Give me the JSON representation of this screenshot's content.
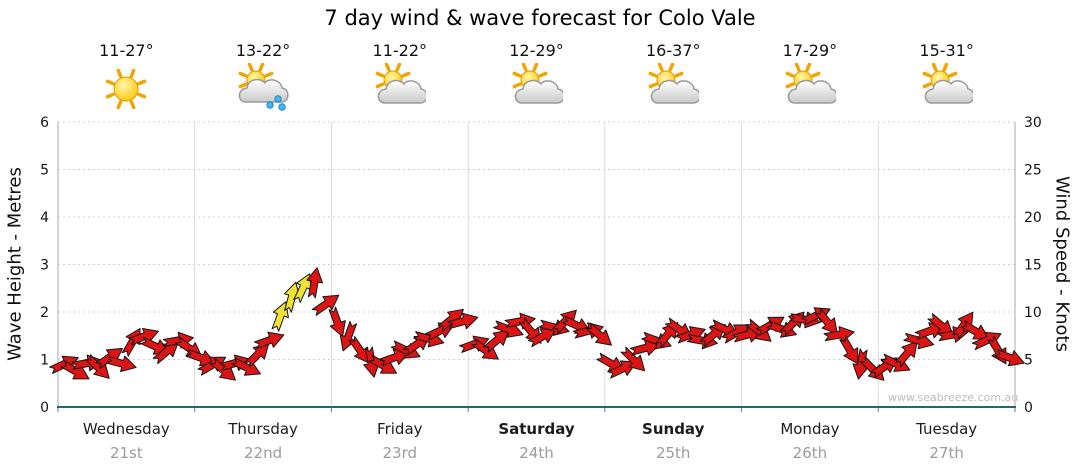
{
  "title": "7 day wind & wave forecast for Colo Vale",
  "watermark": "www.seabreeze.com.au",
  "axes": {
    "left_label": "Wave Height - Metres",
    "right_label": "Wind Speed - Knots",
    "left_ticks": [
      0,
      1,
      2,
      3,
      4,
      5,
      6
    ],
    "right_ticks": [
      0,
      5,
      10,
      15,
      20,
      25,
      30
    ]
  },
  "days": [
    {
      "name": "Wednesday",
      "date": "21st",
      "temp": "11-27°",
      "icon": "sunny",
      "bold": false
    },
    {
      "name": "Thursday",
      "date": "22nd",
      "temp": "13-22°",
      "icon": "partly-cloudy-rain",
      "bold": false
    },
    {
      "name": "Friday",
      "date": "23rd",
      "temp": "11-22°",
      "icon": "partly-cloudy",
      "bold": false
    },
    {
      "name": "Saturday",
      "date": "24th",
      "temp": "12-29°",
      "icon": "partly-cloudy",
      "bold": true
    },
    {
      "name": "Sunday",
      "date": "25th",
      "temp": "16-37°",
      "icon": "partly-cloudy",
      "bold": true
    },
    {
      "name": "Monday",
      "date": "26th",
      "temp": "17-29°",
      "icon": "partly-cloudy",
      "bold": false
    },
    {
      "name": "Tuesday",
      "date": "27th",
      "temp": "15-31°",
      "icon": "partly-cloudy",
      "bold": false
    }
  ],
  "chart_data": {
    "type": "scatter",
    "title": "7 day wind & wave forecast for Colo Vale",
    "x_categories": [
      "Wednesday 21st",
      "Thursday 22nd",
      "Friday 23rd",
      "Saturday 24th",
      "Sunday 25th",
      "Monday 26th",
      "Tuesday 27th"
    ],
    "y_left": {
      "label": "Wave Height - Metres",
      "range": [
        0,
        6
      ],
      "ticks": [
        0,
        1,
        2,
        3,
        4,
        5,
        6
      ]
    },
    "y_right": {
      "label": "Wind Speed - Knots",
      "range": [
        0,
        30
      ],
      "ticks": [
        0,
        5,
        10,
        15,
        20,
        25,
        30
      ]
    },
    "grid": true,
    "legend": "none",
    "series_name": "Wind speed & direction arrows",
    "unit": "knots",
    "points_format": "[wind_speed_knots, arrow_rotation_deg, color r=red y=yellow-strong]",
    "arrow_colors": {
      "normal": "#dd1414",
      "strong": "#f2e233"
    },
    "days": [
      {
        "day": "Wednesday",
        "points": [
          [
            4.5,
            -25,
            "r"
          ],
          [
            3.8,
            30,
            "r"
          ],
          [
            4.6,
            -10,
            "r"
          ],
          [
            4.2,
            45,
            "r"
          ],
          [
            5.2,
            -35,
            "r"
          ],
          [
            4.6,
            15,
            "r"
          ],
          [
            6.8,
            -60,
            "r"
          ],
          [
            7.4,
            -20,
            "r"
          ],
          [
            6.4,
            25,
            "r"
          ],
          [
            5.8,
            -40,
            "r"
          ],
          [
            7.0,
            -10,
            "r"
          ],
          [
            6.2,
            35,
            "r"
          ]
        ]
      },
      {
        "day": "Thursday",
        "points": [
          [
            5.2,
            20,
            "r"
          ],
          [
            4.4,
            -30,
            "r"
          ],
          [
            3.9,
            40,
            "r"
          ],
          [
            4.6,
            -15,
            "r"
          ],
          [
            4.2,
            25,
            "r"
          ],
          [
            5.5,
            -45,
            "r"
          ],
          [
            7.0,
            -20,
            "r"
          ],
          [
            9.5,
            -70,
            "y"
          ],
          [
            11.5,
            -75,
            "y"
          ],
          [
            12.5,
            -65,
            "y"
          ],
          [
            13.0,
            -80,
            "r"
          ],
          [
            10.8,
            -35,
            "r"
          ]
        ]
      },
      {
        "day": "Friday",
        "points": [
          [
            9.0,
            70,
            "r"
          ],
          [
            7.5,
            110,
            "r"
          ],
          [
            6.0,
            55,
            "r"
          ],
          [
            4.8,
            80,
            "r"
          ],
          [
            4.4,
            30,
            "r"
          ],
          [
            5.2,
            -20,
            "r"
          ],
          [
            6.0,
            25,
            "r"
          ],
          [
            6.6,
            -35,
            "r"
          ],
          [
            7.2,
            15,
            "r"
          ],
          [
            8.0,
            -25,
            "r"
          ],
          [
            9.2,
            -40,
            "r"
          ],
          [
            9.0,
            -15,
            "r"
          ]
        ]
      },
      {
        "day": "Saturday",
        "points": [
          [
            6.6,
            -20,
            "r"
          ],
          [
            6.0,
            35,
            "r"
          ],
          [
            7.0,
            -40,
            "r"
          ],
          [
            8.2,
            20,
            "r"
          ],
          [
            9.0,
            -10,
            "r"
          ],
          [
            8.0,
            50,
            "r"
          ],
          [
            7.4,
            -30,
            "r"
          ],
          [
            8.4,
            15,
            "r"
          ],
          [
            9.0,
            -45,
            "r"
          ],
          [
            8.6,
            25,
            "r"
          ],
          [
            8.0,
            -15,
            "r"
          ],
          [
            7.6,
            40,
            "r"
          ]
        ]
      },
      {
        "day": "Sunday",
        "points": [
          [
            4.6,
            30,
            "r"
          ],
          [
            4.0,
            -25,
            "r"
          ],
          [
            5.0,
            45,
            "r"
          ],
          [
            6.2,
            -15,
            "r"
          ],
          [
            7.0,
            20,
            "r"
          ],
          [
            7.6,
            -50,
            "r"
          ],
          [
            8.2,
            35,
            "r"
          ],
          [
            7.6,
            -20,
            "r"
          ],
          [
            7.0,
            10,
            "r"
          ],
          [
            7.6,
            -40,
            "r"
          ],
          [
            8.2,
            25,
            "r"
          ],
          [
            7.8,
            -30,
            "r"
          ]
        ]
      },
      {
        "day": "Monday",
        "points": [
          [
            7.6,
            -15,
            "r"
          ],
          [
            8.0,
            40,
            "r"
          ],
          [
            8.6,
            -30,
            "r"
          ],
          [
            8.2,
            20,
            "r"
          ],
          [
            8.8,
            -45,
            "r"
          ],
          [
            9.2,
            10,
            "r"
          ],
          [
            9.6,
            -25,
            "r"
          ],
          [
            9.0,
            50,
            "r"
          ],
          [
            7.6,
            -10,
            "r"
          ],
          [
            6.0,
            60,
            "r"
          ],
          [
            4.6,
            100,
            "r"
          ],
          [
            4.0,
            45,
            "r"
          ]
        ]
      },
      {
        "day": "Tuesday",
        "points": [
          [
            4.2,
            -35,
            "r"
          ],
          [
            4.6,
            25,
            "r"
          ],
          [
            5.6,
            -50,
            "r"
          ],
          [
            7.0,
            15,
            "r"
          ],
          [
            8.0,
            -20,
            "r"
          ],
          [
            8.6,
            40,
            "r"
          ],
          [
            7.6,
            -10,
            "r"
          ],
          [
            8.6,
            -55,
            "r"
          ],
          [
            8.0,
            30,
            "r"
          ],
          [
            7.0,
            -25,
            "r"
          ],
          [
            6.0,
            60,
            "r"
          ],
          [
            5.2,
            20,
            "r"
          ]
        ]
      }
    ]
  },
  "colors": {
    "grid": "#c9d2e4",
    "day_separator": "#d9d9d9",
    "plot_border": "#aaaaaa",
    "bottom_axis": "#1f6b6b",
    "tick_text": "#141414",
    "date_text": "#9b9b9b"
  }
}
